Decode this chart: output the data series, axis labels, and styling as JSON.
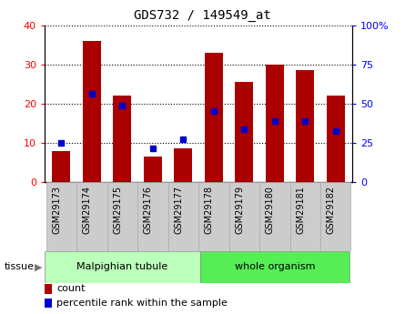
{
  "title": "GDS732 / 149549_at",
  "samples": [
    "GSM29173",
    "GSM29174",
    "GSM29175",
    "GSM29176",
    "GSM29177",
    "GSM29178",
    "GSM29179",
    "GSM29180",
    "GSM29181",
    "GSM29182"
  ],
  "counts": [
    8,
    36,
    22,
    6.5,
    8.5,
    33,
    25.5,
    30,
    28.5,
    22
  ],
  "percentile_left": [
    10,
    22.5,
    19.5,
    8.5,
    11,
    18,
    13.5,
    15.5,
    15.5,
    13
  ],
  "left_ylim": [
    0,
    40
  ],
  "right_ylim": [
    0,
    100
  ],
  "left_yticks": [
    0,
    10,
    20,
    30,
    40
  ],
  "right_yticks": [
    0,
    25,
    50,
    75,
    100
  ],
  "right_yticklabels": [
    "0",
    "25",
    "50",
    "75",
    "100%"
  ],
  "bar_color": "#aa0000",
  "dot_color": "#0000cc",
  "tissue_groups": [
    {
      "label": "Malpighian tubule",
      "start": 0,
      "end": 5,
      "color": "#bbffbb"
    },
    {
      "label": "whole organism",
      "start": 5,
      "end": 10,
      "color": "#55ee55"
    }
  ],
  "legend_count_label": "count",
  "legend_pct_label": "percentile rank within the sample",
  "tissue_label": "tissue",
  "bar_width": 0.6
}
